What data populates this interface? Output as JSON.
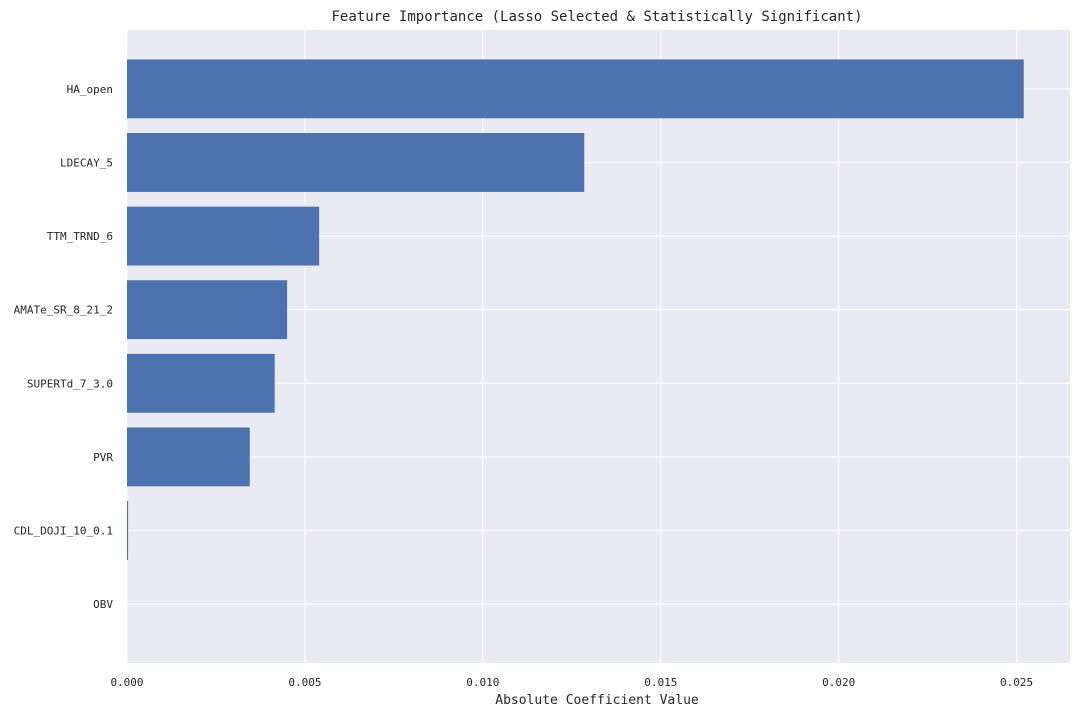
{
  "chart_data": {
    "type": "bar",
    "orientation": "horizontal",
    "title": "Feature Importance (Lasso Selected & Statistically Significant)",
    "xlabel": "Absolute Coefficient Value",
    "ylabel": "",
    "categories": [
      "HA_open",
      "LDECAY_5",
      "TTM_TRND_6",
      "AMATe_SR_8_21_2",
      "SUPERTd_7_3.0",
      "PVR",
      "CDL_DOJI_10_0.1",
      "OBV"
    ],
    "values": [
      0.0252,
      0.01285,
      0.0054,
      0.0045,
      0.00415,
      0.00345,
      3e-05,
      0.0
    ],
    "xlim": [
      0,
      0.0265
    ],
    "xticks": [
      0.0,
      0.005,
      0.01,
      0.015,
      0.02,
      0.025
    ],
    "xtick_labels": [
      "0.000",
      "0.005",
      "0.010",
      "0.015",
      "0.020",
      "0.025"
    ],
    "grid": true,
    "bar_color": "#4c72b0",
    "plot_background": "#eaeaf2",
    "grid_color": "#ffffff"
  }
}
